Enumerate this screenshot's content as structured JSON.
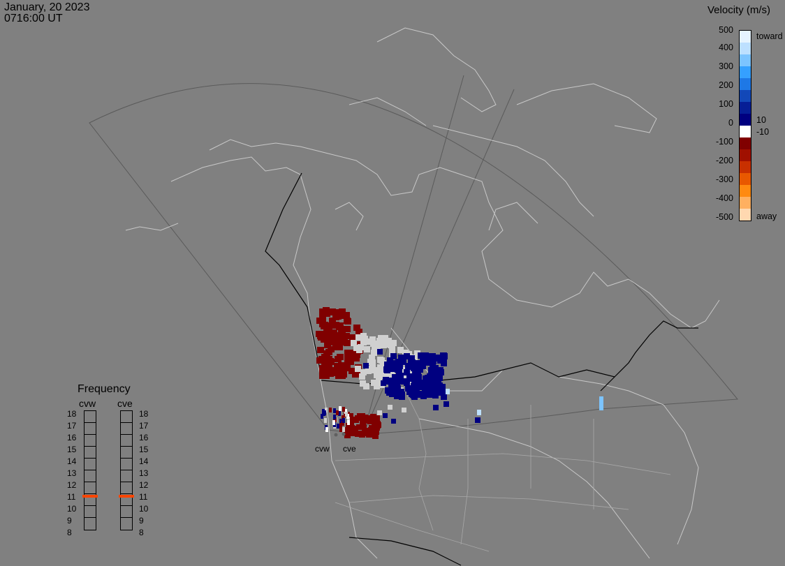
{
  "header": {
    "date": "January, 20 2023",
    "time": "0716:00 UT"
  },
  "velocity_scale": {
    "title": "Velocity (m/s)",
    "ticks": [
      "500",
      "400",
      "300",
      "200",
      "100",
      "10",
      "0",
      "-10",
      "-100",
      "-200",
      "-300",
      "-400",
      "-500"
    ],
    "toward_label": "toward",
    "away_label": "away",
    "colors": [
      "#e6f4ff",
      "#bde0ff",
      "#7cc4ff",
      "#35a0ff",
      "#1e78e6",
      "#1248b8",
      "#061e96",
      "#000080",
      "#ffffff",
      "#800000",
      "#a01000",
      "#c83000",
      "#e85800",
      "#ff8a10",
      "#ffb060",
      "#ffd8b0"
    ]
  },
  "frequency": {
    "title": "Frequency",
    "radars": [
      {
        "name": "cvw",
        "mhz": 10.8
      },
      {
        "name": "cve",
        "mhz": 10.8
      }
    ],
    "scale": [
      "18",
      "17",
      "16",
      "15",
      "14",
      "13",
      "12",
      "11",
      "10",
      "9",
      "8"
    ]
  },
  "radars": [
    {
      "name": "cvw"
    },
    {
      "name": "cve"
    }
  ],
  "map_colors": {
    "background": "#808080",
    "coast": "#c8c8c8",
    "border": "#000000",
    "fov": "#555555",
    "ground_scatter": "#d0d0d0"
  }
}
